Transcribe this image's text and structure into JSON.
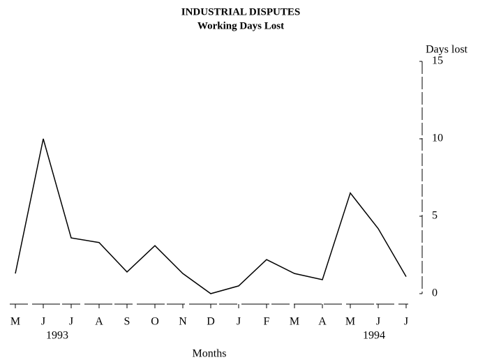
{
  "chart_data": {
    "type": "line",
    "title": "INDUSTRIAL DISPUTES",
    "subtitle": "Working Days Lost",
    "y_label": "Days lost",
    "x_label": "Months",
    "categories": [
      "M",
      "J",
      "J",
      "A",
      "S",
      "O",
      "N",
      "D",
      "J",
      "F",
      "M",
      "A",
      "M",
      "J",
      "J"
    ],
    "year_labels": [
      {
        "category": 1,
        "label": "1993"
      },
      {
        "category": 13,
        "label": "1994"
      }
    ],
    "series": [
      {
        "name": "Working days lost",
        "color": "#000000",
        "values": [
          1.3,
          10.0,
          3.6,
          3.3,
          1.4,
          3.1,
          1.3,
          0.0,
          0.5,
          2.2,
          1.3,
          0.9,
          6.5,
          4.2,
          1.1
        ]
      }
    ],
    "ylim": [
      0,
      15
    ],
    "yticks": [
      0,
      5,
      10,
      15
    ],
    "y_axis_side": "right"
  }
}
